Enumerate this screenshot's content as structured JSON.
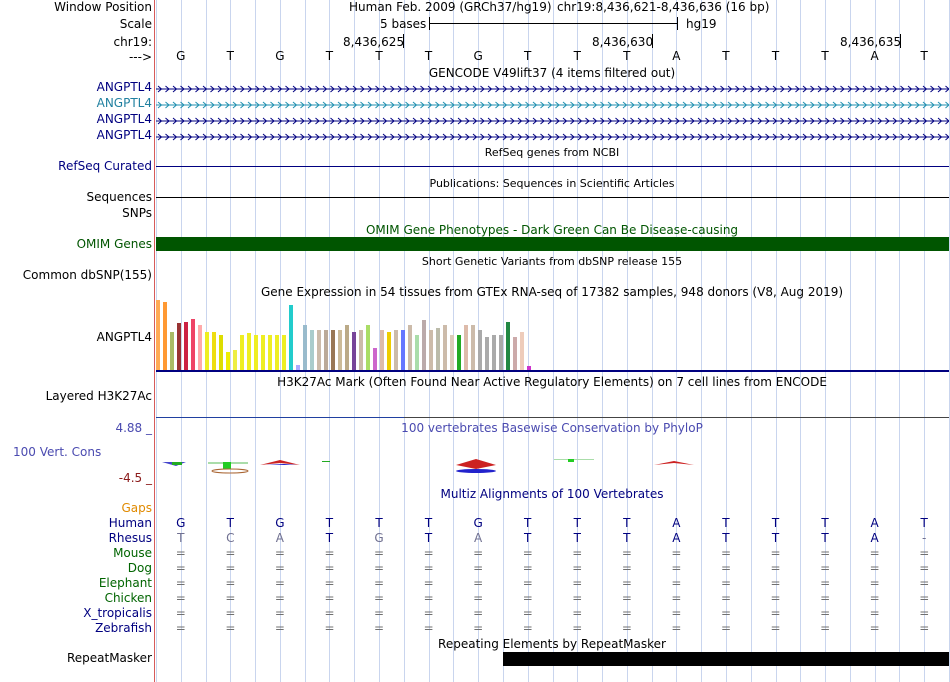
{
  "header": {
    "window_position_label": "Window Position",
    "scale_label": "Scale",
    "chrom_label": "chr19:",
    "strand_label": "--->",
    "assembly": "Human Feb. 2009 (GRCh37/hg19)",
    "position": "chr19:8,436,621-8,436,636 (16 bp)",
    "scale_text": "5 bases",
    "db": "hg19",
    "ticks": [
      "8,436,625",
      "8,436,630",
      "8,436,635"
    ]
  },
  "sequence": [
    "G",
    "T",
    "G",
    "T",
    "T",
    "T",
    "G",
    "T",
    "T",
    "T",
    "A",
    "T",
    "T",
    "T",
    "A",
    "T"
  ],
  "tracks": {
    "gencode": {
      "title": "GENCODE V49lift37 (4 items filtered out)",
      "items": [
        "ANGPTL4",
        "ANGPTL4",
        "ANGPTL4",
        "ANGPTL4"
      ]
    },
    "refseq": {
      "label": "RefSeq Curated",
      "title": "RefSeq genes from NCBI"
    },
    "publications": {
      "title": "Publications: Sequences in Scientific Articles",
      "label_seq": "Sequences",
      "label_snps": "SNPs"
    },
    "omim": {
      "label": "OMIM Genes",
      "title": "OMIM Gene Phenotypes - Dark Green Can Be Disease-causing",
      "color": "#005500"
    },
    "dbsnp": {
      "label": "Common dbSNP(155)",
      "title": "Short Genetic Variants from dbSNP release 155"
    },
    "gtex": {
      "label": "ANGPTL4",
      "title": "Gene Expression in 54 tissues from GTEx RNA-seq of 17382 samples, 948 donors (V8, Aug 2019)"
    },
    "h3k27ac": {
      "label": "Layered H3K27Ac",
      "title": "H3K27Ac Mark (Often Found Near Active Regulatory Elements) on 7 cell lines from ENCODE"
    },
    "phylop": {
      "label": "100 Vert. Cons",
      "max": "4.88 _",
      "min": "-4.5 _",
      "title": "100 vertebrates Basewise Conservation by PhyloP",
      "color": "#4a4ab0"
    },
    "multiz": {
      "title": "Multiz Alignments of 100 Vertebrates",
      "gaps_label": "Gaps"
    },
    "repeatmasker": {
      "label": "RepeatMasker",
      "title": "Repeating Elements by RepeatMasker"
    }
  },
  "species": [
    {
      "name": "Human",
      "color": "#000080",
      "bases": [
        "G",
        "T",
        "G",
        "T",
        "T",
        "T",
        "G",
        "T",
        "T",
        "T",
        "A",
        "T",
        "T",
        "T",
        "A",
        "T"
      ],
      "base_color": "#000080"
    },
    {
      "name": "Rhesus",
      "color": "#000080",
      "bases": [
        "T",
        "C",
        "A",
        "T",
        "G",
        "T",
        "A",
        "T",
        "T",
        "T",
        "A",
        "T",
        "T",
        "T",
        "A",
        "-"
      ],
      "base_color": "mixed"
    },
    {
      "name": "Mouse",
      "color": "#006400",
      "bases": [
        "=",
        "=",
        "=",
        "=",
        "=",
        "=",
        "=",
        "=",
        "=",
        "=",
        "=",
        "=",
        "=",
        "=",
        "=",
        "="
      ],
      "base_color": "#707070"
    },
    {
      "name": "Dog",
      "color": "#006400",
      "bases": [
        "=",
        "=",
        "=",
        "=",
        "=",
        "=",
        "=",
        "=",
        "=",
        "=",
        "=",
        "=",
        "=",
        "=",
        "=",
        "="
      ],
      "base_color": "#707070"
    },
    {
      "name": "Elephant",
      "color": "#006400",
      "bases": [
        "=",
        "=",
        "=",
        "=",
        "=",
        "=",
        "=",
        "=",
        "=",
        "=",
        "=",
        "=",
        "=",
        "=",
        "=",
        "="
      ],
      "base_color": "#707070"
    },
    {
      "name": "Chicken",
      "color": "#006400",
      "bases": [
        "=",
        "=",
        "=",
        "=",
        "=",
        "=",
        "=",
        "=",
        "=",
        "=",
        "=",
        "=",
        "=",
        "=",
        "=",
        "="
      ],
      "base_color": "#707070"
    },
    {
      "name": "X_tropicalis",
      "color": "#000080",
      "bases": [
        "=",
        "=",
        "=",
        "=",
        "=",
        "=",
        "=",
        "=",
        "=",
        "=",
        "=",
        "=",
        "=",
        "=",
        "=",
        "="
      ],
      "base_color": "#707070"
    },
    {
      "name": "Zebrafish",
      "color": "#000080",
      "bases": [
        "=",
        "=",
        "=",
        "=",
        "=",
        "=",
        "=",
        "=",
        "=",
        "=",
        "=",
        "=",
        "=",
        "=",
        "=",
        "="
      ],
      "base_color": "#707070"
    }
  ],
  "chart_data": {
    "type": "bar",
    "title": "Gene Expression in 54 tissues from GTEx RNA-seq of 17382 samples, 948 donors (V8, Aug 2019)",
    "xlabel": "",
    "ylabel": "",
    "values": [
      70,
      68,
      38,
      47,
      48,
      51,
      45,
      38,
      38,
      35,
      18,
      20,
      35,
      37,
      35,
      35,
      35,
      35,
      35,
      65,
      5,
      45,
      40,
      40,
      40,
      40,
      40,
      45,
      38,
      40,
      45,
      22,
      40,
      38,
      40,
      40,
      45,
      35,
      50,
      40,
      42,
      45,
      35,
      35,
      45,
      45,
      40,
      33,
      35,
      35,
      48,
      33,
      38,
      4
    ],
    "colors": [
      "#ffaa55",
      "#ff9933",
      "#aabb66",
      "#993333",
      "#cc2244",
      "#ee4466",
      "#ffaaaa",
      "#eeee22",
      "#eedd11",
      "#dddd00",
      "#eeee00",
      "#eeee44",
      "#eeee22",
      "#eeee22",
      "#eeee22",
      "#eeee22",
      "#eeee22",
      "#eeee22",
      "#eeee22",
      "#22cccc",
      "#aaaaff",
      "#99bbcc",
      "#aacccc",
      "#ccbbaa",
      "#bbaa99",
      "#997755",
      "#ccbb99",
      "#bbaa88",
      "#774499",
      "#ccbbaa",
      "#aadd66",
      "#cc66cc",
      "#ddbbaa",
      "#eecc00",
      "#ccbbaa",
      "#6677ff",
      "#ccbbaa",
      "#aaddaa",
      "#bbaaaa",
      "#ccbbaa",
      "#bbbbaa",
      "#ccbbaa",
      "#ddccbb",
      "#22aa22",
      "#ddbbaa",
      "#ccbbaa",
      "#aaaaaa",
      "#aaaaaa",
      "#aaaaaa",
      "#aaaaaa",
      "#228844",
      "#ccaaaa",
      "#eeccbb",
      "#cc33cc"
    ]
  }
}
